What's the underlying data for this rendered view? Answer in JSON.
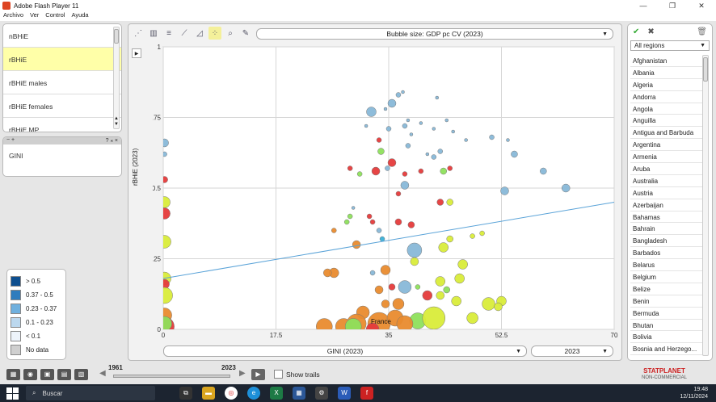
{
  "window": {
    "title": "Adobe Flash Player 11",
    "minimize": "—",
    "maximize": "❐",
    "close": "✕"
  },
  "menu": [
    "Archivo",
    "Ver",
    "Control",
    "Ayuda"
  ],
  "indicators": [
    "nBHiE",
    "rBHiE",
    "rBHiE males",
    "rBHiE females",
    "rBHiE MP"
  ],
  "selected_indicator_index": 1,
  "panel2": {
    "head_left": "−  +",
    "head_right": "?  ⁎  ×",
    "item": "GINI"
  },
  "legend": [
    {
      "label": "> 0.5",
      "color": "#0e4f8f"
    },
    {
      "label": "0.37 - 0.5",
      "color": "#2f7cbd"
    },
    {
      "label": "0.23 - 0.37",
      "color": "#6fb0de"
    },
    {
      "label": "0.1 - 0.23",
      "color": "#bcd8ee"
    },
    {
      "label": "< 0.1",
      "color": "#eef4fb"
    },
    {
      "label": "No data",
      "color": "#cfcfcf"
    }
  ],
  "toolbar_icons": [
    "scatter-icon",
    "bar-chart-icon",
    "hbar-chart-icon",
    "line-chart-icon",
    "area-chart-icon",
    "bubble-chart-icon",
    "zoom-icon",
    "settings-icon"
  ],
  "bubble_size_label": "Bubble size: GDP pc CV (2023)",
  "y_axis_label": "rBHiE (2023)",
  "x_axis_label": "GINI  (2023)",
  "year_selected": "2023",
  "chart_data": {
    "type": "scatter",
    "xlim": [
      0,
      70
    ],
    "ylim": [
      0,
      1
    ],
    "x_ticks": [
      "0",
      "17.5",
      "35",
      "52.5",
      "70"
    ],
    "y_ticks": [
      "0",
      "0.25",
      "0.5",
      "0.75",
      "1"
    ],
    "trend_line": [
      [
        0,
        0.18
      ],
      [
        70,
        0.45
      ]
    ],
    "annotation": {
      "text": "France",
      "x": 33.8,
      "y": 0.02
    },
    "points": [
      {
        "x": 35.5,
        "y": 0.8,
        "r": 5,
        "c": "#88b8d8"
      },
      {
        "x": 36.5,
        "y": 0.83,
        "r": 3,
        "c": "#88b8d8"
      },
      {
        "x": 37.2,
        "y": 0.84,
        "r": 2,
        "c": "#88b8d8"
      },
      {
        "x": 34.5,
        "y": 0.78,
        "r": 2,
        "c": "#88b8d8"
      },
      {
        "x": 32.3,
        "y": 0.77,
        "r": 6,
        "c": "#88b8d8"
      },
      {
        "x": 42.5,
        "y": 0.82,
        "r": 2,
        "c": "#88b8d8"
      },
      {
        "x": 38.0,
        "y": 0.74,
        "r": 2,
        "c": "#88b8d8"
      },
      {
        "x": 44.0,
        "y": 0.74,
        "r": 2,
        "c": "#88b8d8"
      },
      {
        "x": 37.5,
        "y": 0.72,
        "r": 3,
        "c": "#88b8d8"
      },
      {
        "x": 40.0,
        "y": 0.73,
        "r": 2,
        "c": "#88b8d8"
      },
      {
        "x": 35.0,
        "y": 0.71,
        "r": 3,
        "c": "#88b8d8"
      },
      {
        "x": 31.5,
        "y": 0.72,
        "r": 2,
        "c": "#88b8d8"
      },
      {
        "x": 42.0,
        "y": 0.71,
        "r": 2,
        "c": "#88b8d8"
      },
      {
        "x": 45.0,
        "y": 0.7,
        "r": 2,
        "c": "#88b8d8"
      },
      {
        "x": 38.5,
        "y": 0.69,
        "r": 2,
        "c": "#88b8d8"
      },
      {
        "x": 47.0,
        "y": 0.67,
        "r": 2,
        "c": "#88b8d8"
      },
      {
        "x": 51.0,
        "y": 0.68,
        "r": 3,
        "c": "#88b8d8"
      },
      {
        "x": 53.5,
        "y": 0.67,
        "r": 2,
        "c": "#88b8d8"
      },
      {
        "x": 38.0,
        "y": 0.65,
        "r": 3,
        "c": "#88b8d8"
      },
      {
        "x": 43.0,
        "y": 0.63,
        "r": 3,
        "c": "#88b8d8"
      },
      {
        "x": 42.0,
        "y": 0.61,
        "r": 3,
        "c": "#88b8d8"
      },
      {
        "x": 41.0,
        "y": 0.62,
        "r": 2,
        "c": "#88b8d8"
      },
      {
        "x": 54.5,
        "y": 0.62,
        "r": 4,
        "c": "#88b8d8"
      },
      {
        "x": 59.0,
        "y": 0.56,
        "r": 4,
        "c": "#88b8d8"
      },
      {
        "x": 62.5,
        "y": 0.5,
        "r": 5,
        "c": "#88b8d8"
      },
      {
        "x": 53.0,
        "y": 0.49,
        "r": 5,
        "c": "#88b8d8"
      },
      {
        "x": 37.5,
        "y": 0.51,
        "r": 5,
        "c": "#88b8d8"
      },
      {
        "x": 34.8,
        "y": 0.57,
        "r": 3,
        "c": "#88b8d8"
      },
      {
        "x": 33.5,
        "y": 0.67,
        "r": 3,
        "c": "#e53b3b"
      },
      {
        "x": 33.8,
        "y": 0.63,
        "r": 4,
        "c": "#8ee05c"
      },
      {
        "x": 35.5,
        "y": 0.59,
        "r": 5,
        "c": "#e53b3b"
      },
      {
        "x": 33.0,
        "y": 0.56,
        "r": 5,
        "c": "#e53b3b"
      },
      {
        "x": 29.0,
        "y": 0.57,
        "r": 3,
        "c": "#e53b3b"
      },
      {
        "x": 30.5,
        "y": 0.55,
        "r": 3,
        "c": "#8ee05c"
      },
      {
        "x": 37.5,
        "y": 0.55,
        "r": 3,
        "c": "#e53b3b"
      },
      {
        "x": 40.0,
        "y": 0.56,
        "r": 3,
        "c": "#e53b3b"
      },
      {
        "x": 43.5,
        "y": 0.56,
        "r": 4,
        "c": "#8ee05c"
      },
      {
        "x": 44.5,
        "y": 0.57,
        "r": 3,
        "c": "#e53b3b"
      },
      {
        "x": 36.5,
        "y": 0.48,
        "r": 3,
        "c": "#e53b3b"
      },
      {
        "x": 43.0,
        "y": 0.45,
        "r": 4,
        "c": "#e53b3b"
      },
      {
        "x": 44.5,
        "y": 0.45,
        "r": 4,
        "c": "#d9ec3a"
      },
      {
        "x": 29.5,
        "y": 0.43,
        "r": 2,
        "c": "#88b8d8"
      },
      {
        "x": 29.0,
        "y": 0.4,
        "r": 3,
        "c": "#8ee05c"
      },
      {
        "x": 32.0,
        "y": 0.4,
        "r": 3,
        "c": "#e53b3b"
      },
      {
        "x": 32.5,
        "y": 0.38,
        "r": 3,
        "c": "#e53b3b"
      },
      {
        "x": 28.5,
        "y": 0.38,
        "r": 3,
        "c": "#8ee05c"
      },
      {
        "x": 36.5,
        "y": 0.38,
        "r": 4,
        "c": "#e53b3b"
      },
      {
        "x": 38.5,
        "y": 0.37,
        "r": 4,
        "c": "#e53b3b"
      },
      {
        "x": 26.5,
        "y": 0.35,
        "r": 3,
        "c": "#e98b2e"
      },
      {
        "x": 33.5,
        "y": 0.35,
        "r": 3,
        "c": "#88b8d8"
      },
      {
        "x": 48.0,
        "y": 0.33,
        "r": 3,
        "c": "#d9ec3a"
      },
      {
        "x": 49.5,
        "y": 0.34,
        "r": 3,
        "c": "#d9ec3a"
      },
      {
        "x": 44.5,
        "y": 0.32,
        "r": 4,
        "c": "#d9ec3a"
      },
      {
        "x": 34.0,
        "y": 0.32,
        "r": 3,
        "c": "#3ab0d8"
      },
      {
        "x": 30.0,
        "y": 0.3,
        "r": 5,
        "c": "#e98b2e"
      },
      {
        "x": 39.0,
        "y": 0.28,
        "r": 9,
        "c": "#88b8d8"
      },
      {
        "x": 43.5,
        "y": 0.29,
        "r": 6,
        "c": "#d9ec3a"
      },
      {
        "x": 39.0,
        "y": 0.24,
        "r": 5,
        "c": "#d9ec3a"
      },
      {
        "x": 34.5,
        "y": 0.21,
        "r": 6,
        "c": "#e98b2e"
      },
      {
        "x": 32.5,
        "y": 0.2,
        "r": 3,
        "c": "#88b8d8"
      },
      {
        "x": 26.5,
        "y": 0.2,
        "r": 6,
        "c": "#e98b2e"
      },
      {
        "x": 25.5,
        "y": 0.2,
        "r": 5,
        "c": "#e98b2e"
      },
      {
        "x": 46.5,
        "y": 0.23,
        "r": 6,
        "c": "#d9ec3a"
      },
      {
        "x": 46.0,
        "y": 0.18,
        "r": 6,
        "c": "#d9ec3a"
      },
      {
        "x": 43.0,
        "y": 0.17,
        "r": 6,
        "c": "#d9ec3a"
      },
      {
        "x": 37.5,
        "y": 0.15,
        "r": 8,
        "c": "#88b8d8"
      },
      {
        "x": 35.5,
        "y": 0.15,
        "r": 4,
        "c": "#e53b3b"
      },
      {
        "x": 39.5,
        "y": 0.15,
        "r": 3,
        "c": "#8ee05c"
      },
      {
        "x": 33.5,
        "y": 0.14,
        "r": 5,
        "c": "#e98b2e"
      },
      {
        "x": 44.0,
        "y": 0.14,
        "r": 4,
        "c": "#8ee05c"
      },
      {
        "x": 41.0,
        "y": 0.12,
        "r": 6,
        "c": "#e53b3b"
      },
      {
        "x": 43.0,
        "y": 0.12,
        "r": 5,
        "c": "#d9ec3a"
      },
      {
        "x": 45.5,
        "y": 0.1,
        "r": 6,
        "c": "#d9ec3a"
      },
      {
        "x": 36.5,
        "y": 0.09,
        "r": 7,
        "c": "#e98b2e"
      },
      {
        "x": 34.5,
        "y": 0.09,
        "r": 5,
        "c": "#e98b2e"
      },
      {
        "x": 50.5,
        "y": 0.09,
        "r": 8,
        "c": "#d9ec3a"
      },
      {
        "x": 52.5,
        "y": 0.1,
        "r": 6,
        "c": "#d9ec3a"
      },
      {
        "x": 52.0,
        "y": 0.08,
        "r": 5,
        "c": "#d9ec3a"
      },
      {
        "x": 48.0,
        "y": 0.04,
        "r": 7,
        "c": "#d9ec3a"
      },
      {
        "x": 31.0,
        "y": 0.06,
        "r": 8,
        "c": "#e98b2e"
      },
      {
        "x": 30.0,
        "y": 0.02,
        "r": 12,
        "c": "#e98b2e"
      },
      {
        "x": 33.5,
        "y": 0.02,
        "r": 14,
        "c": "#e98b2e"
      },
      {
        "x": 36.0,
        "y": 0.04,
        "r": 10,
        "c": "#e98b2e"
      },
      {
        "x": 28.0,
        "y": 0.01,
        "r": 10,
        "c": "#e98b2e"
      },
      {
        "x": 25.0,
        "y": 0.01,
        "r": 10,
        "c": "#e98b2e"
      },
      {
        "x": 29.5,
        "y": 0.01,
        "r": 10,
        "c": "#8ee05c"
      },
      {
        "x": 39.5,
        "y": 0.03,
        "r": 10,
        "c": "#8ee05c"
      },
      {
        "x": 42.0,
        "y": 0.04,
        "r": 14,
        "c": "#d9ec3a"
      },
      {
        "x": 37.5,
        "y": 0.02,
        "r": 10,
        "c": "#e98b2e"
      },
      {
        "x": 32.5,
        "y": 0.0,
        "r": 8,
        "c": "#e53b3b"
      },
      {
        "x": 0.2,
        "y": 0.66,
        "r": 5,
        "c": "#88b8d8"
      },
      {
        "x": 0.2,
        "y": 0.62,
        "r": 3,
        "c": "#88b8d8"
      },
      {
        "x": 0.2,
        "y": 0.53,
        "r": 4,
        "c": "#e53b3b"
      },
      {
        "x": 0.2,
        "y": 0.45,
        "r": 7,
        "c": "#d9ec3a"
      },
      {
        "x": 0.2,
        "y": 0.41,
        "r": 7,
        "c": "#e53b3b"
      },
      {
        "x": 0.2,
        "y": 0.31,
        "r": 8,
        "c": "#d9ec3a"
      },
      {
        "x": 0.2,
        "y": 0.18,
        "r": 8,
        "c": "#d9ec3a"
      },
      {
        "x": 0.2,
        "y": 0.16,
        "r": 6,
        "c": "#e53b3b"
      },
      {
        "x": 0.2,
        "y": 0.12,
        "r": 10,
        "c": "#d9ec3a"
      },
      {
        "x": 0.2,
        "y": 0.05,
        "r": 9,
        "c": "#e98b2e"
      },
      {
        "x": 0.2,
        "y": 0.01,
        "r": 12,
        "c": "#e53b3b"
      },
      {
        "x": 0.2,
        "y": 0.02,
        "r": 9,
        "c": "#8ee05c"
      }
    ]
  },
  "right_panel": {
    "region_filter": "All regions",
    "confirm_icon": "✔",
    "cancel_icon": "✖",
    "trash_icon": "🗑"
  },
  "countries": [
    "Afghanistan",
    "Albania",
    "Algeria",
    "Andorra",
    "Angola",
    "Anguilla",
    "Antigua and Barbuda",
    "Argentina",
    "Armenia",
    "Aruba",
    "Australia",
    "Austria",
    "Azerbaijan",
    "Bahamas",
    "Bahrain",
    "Bangladesh",
    "Barbados",
    "Belarus",
    "Belgium",
    "Belize",
    "Benin",
    "Bermuda",
    "Bhutan",
    "Bolivia",
    "Bosnia and Herzego..."
  ],
  "timeline": {
    "start": "1961",
    "end": "2023",
    "show_trails": "Show trails"
  },
  "brand": {
    "name": "STATPLANET",
    "sub": "NON-COMMERCIAL"
  },
  "taskbar": {
    "search": "Buscar",
    "time": "19:48",
    "date": "12/11/2024"
  }
}
